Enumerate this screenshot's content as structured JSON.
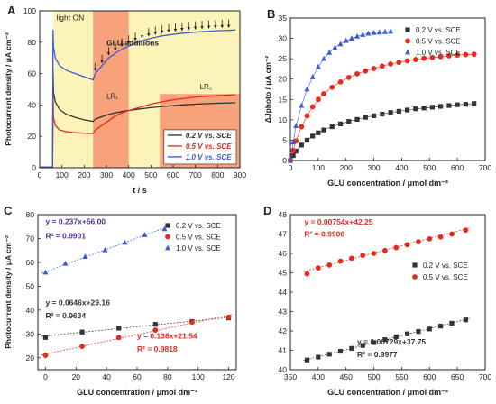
{
  "colors": {
    "black": "#333333",
    "red": "#e8291c",
    "blue": "#3c5bd6",
    "yellow": "#fbf3b8",
    "orange": "#f7a27a",
    "grey_gridline": "#999999",
    "purple": "#5a2ea0"
  },
  "chart_data": [
    {
      "panel": "A",
      "type": "line",
      "xlabel": "t / s",
      "ylabel": "Photocurrent density / μA cm⁻²",
      "xlim": [
        0,
        900
      ],
      "ylim": [
        0,
        100
      ],
      "xticks": [
        "0",
        "100",
        "200",
        "300",
        "400",
        "500",
        "600",
        "700",
        "800",
        "900"
      ],
      "yticks": [
        "0",
        "20",
        "40",
        "60",
        "80",
        "100"
      ],
      "annotations": {
        "light_on": "light ON",
        "glu": "GLU additions",
        "lr1": "LR₁",
        "lr2": "LR₂"
      },
      "shaded_regions": [
        {
          "label": "light ON",
          "x": [
            60,
            900
          ],
          "y": [
            0,
            100
          ],
          "color": "yellow"
        },
        {
          "label": "LR₁",
          "x": [
            240,
            400
          ],
          "y": [
            0,
            100
          ],
          "color": "orange"
        },
        {
          "label": "LR₂",
          "x": [
            540,
            900
          ],
          "y": [
            0,
            47
          ],
          "color": "orange"
        }
      ],
      "arrow_times": [
        250,
        280,
        310,
        340,
        370,
        400,
        430,
        460,
        490,
        520,
        550,
        580,
        610,
        640,
        670,
        700,
        730,
        760,
        790,
        820,
        850
      ],
      "legend_position": "bottom-right",
      "series": [
        {
          "name": "0.2 V vs. SCE",
          "color": "black",
          "x": [
            0,
            58,
            60,
            62,
            70,
            90,
            120,
            160,
            200,
            240,
            250,
            280,
            310,
            340,
            370,
            400,
            450,
            500,
            550,
            600,
            650,
            700,
            750,
            800,
            850,
            880
          ],
          "y": [
            0.5,
            0.5,
            62,
            48,
            42,
            37,
            34,
            32,
            30.5,
            29.5,
            31,
            32.5,
            34,
            35,
            35.8,
            36.5,
            37.5,
            38.3,
            39,
            39.6,
            40.1,
            40.5,
            40.8,
            41.1,
            41.3,
            41.4
          ]
        },
        {
          "name": "0.5 V vs. SCE",
          "color": "red",
          "x": [
            0,
            58,
            60,
            62,
            70,
            90,
            120,
            160,
            200,
            240,
            250,
            280,
            310,
            340,
            370,
            400,
            450,
            500,
            550,
            600,
            650,
            700,
            750,
            800,
            850,
            880
          ],
          "y": [
            0.5,
            0.5,
            46,
            32,
            27,
            24,
            23,
            22.3,
            22,
            21.8,
            24,
            27,
            30,
            33,
            35,
            36.5,
            38.5,
            40.5,
            42,
            43.3,
            44.2,
            45,
            45.6,
            46,
            46.3,
            46.5
          ]
        },
        {
          "name": "1.0 V vs. SCE",
          "color": "blue",
          "x": [
            0,
            58,
            60,
            62,
            70,
            90,
            120,
            160,
            200,
            240,
            250,
            280,
            310,
            340,
            370,
            400,
            450,
            500,
            550,
            600,
            650,
            700,
            750,
            800,
            850,
            880
          ],
          "y": [
            0.5,
            0.5,
            88,
            77,
            70,
            65,
            62,
            60,
            58,
            56,
            60,
            65,
            70,
            73,
            75.5,
            77.5,
            80.5,
            82.5,
            84,
            85,
            85.8,
            86.4,
            86.9,
            87.3,
            87.6,
            87.8
          ]
        }
      ]
    },
    {
      "panel": "B",
      "type": "scatter",
      "xlabel": "GLU concentration / μmol dm⁻³",
      "ylabel": "ΔJphoto / μA cm⁻²",
      "xlim": [
        0,
        700
      ],
      "ylim": [
        0,
        35
      ],
      "xticks": [
        "0",
        "100",
        "200",
        "300",
        "400",
        "500",
        "600",
        "700"
      ],
      "yticks": [
        "0",
        "5",
        "10",
        "15",
        "20",
        "25",
        "30",
        "35"
      ],
      "legend_position": "top-right",
      "series": [
        {
          "name": "0.2 V vs. SCE",
          "color": "black",
          "marker": "square",
          "x": [
            0,
            10,
            20,
            40,
            60,
            80,
            100,
            120,
            150,
            180,
            210,
            240,
            270,
            300,
            330,
            360,
            390,
            420,
            450,
            480,
            510,
            540,
            570,
            600,
            630,
            660
          ],
          "y": [
            0,
            1.2,
            2.3,
            3.8,
            5,
            6,
            6.8,
            7.5,
            8.3,
            9,
            9.6,
            10.1,
            10.6,
            11,
            11.4,
            11.8,
            12.1,
            12.4,
            12.7,
            12.9,
            13.1,
            13.3,
            13.5,
            13.7,
            13.8,
            14
          ]
        },
        {
          "name": "0.5 V vs. SCE",
          "color": "red",
          "marker": "circle",
          "x": [
            0,
            10,
            20,
            40,
            60,
            80,
            100,
            120,
            150,
            180,
            210,
            240,
            270,
            300,
            330,
            360,
            390,
            420,
            450,
            480,
            510,
            540,
            570,
            600,
            630,
            660
          ],
          "y": [
            0,
            2.5,
            4.8,
            8.3,
            11,
            13.2,
            15,
            16.4,
            18,
            19.3,
            20.4,
            21.3,
            22,
            22.6,
            23.2,
            23.7,
            24.1,
            24.5,
            24.8,
            25.1,
            25.3,
            25.5,
            25.7,
            25.9,
            26,
            26.1
          ]
        },
        {
          "name": "1.0 V vs. SCE",
          "color": "blue",
          "marker": "triangle",
          "x": [
            0,
            10,
            20,
            40,
            60,
            80,
            100,
            120,
            140,
            160,
            180,
            200,
            220,
            240,
            260,
            280,
            300,
            320,
            340,
            360
          ],
          "y": [
            0,
            4.5,
            8.5,
            13.5,
            17.5,
            20.5,
            23,
            25,
            26.5,
            27.7,
            28.6,
            29.4,
            30,
            30.5,
            30.9,
            31.2,
            31.4,
            31.5,
            31.6,
            31.7
          ]
        }
      ]
    },
    {
      "panel": "C",
      "type": "scatter",
      "xlabel": "GLU concentration / μmol dm⁻³",
      "ylabel": "Photocurrent density / μA cm⁻²",
      "xlim": [
        -5,
        125
      ],
      "ylim": [
        15,
        80
      ],
      "xticks": [
        "0",
        "20",
        "40",
        "60",
        "80",
        "100",
        "120"
      ],
      "yticks": [
        "20",
        "30",
        "40",
        "50",
        "60",
        "70",
        "80"
      ],
      "legend_position": "top-right",
      "equations": [
        {
          "eq": "y = 0.237x+56.00",
          "r2": "R² = 0.9901",
          "color": "blue"
        },
        {
          "eq": "y = 0.0646x+29.16",
          "r2": "R² = 0.9634",
          "color": "black"
        },
        {
          "eq": "y = 0.136x+21.54",
          "r2": "R² = 0.9818",
          "color": "red"
        }
      ],
      "series": [
        {
          "name": "0.2 V vs. SCE",
          "color": "black",
          "marker": "square",
          "fit": [
            0.0646,
            29.16
          ],
          "x": [
            0,
            24,
            48,
            72,
            96,
            120
          ],
          "y": [
            28.5,
            30.8,
            32.4,
            34.0,
            35.2,
            36.7
          ]
        },
        {
          "name": "0.5 V vs. SCE",
          "color": "red",
          "marker": "circle",
          "fit": [
            0.136,
            21.54
          ],
          "x": [
            0,
            24,
            48,
            72,
            96,
            120
          ],
          "y": [
            21.0,
            24.8,
            28.5,
            31.6,
            34.9,
            37.0
          ]
        },
        {
          "name": "1.0 V vs. SCE",
          "color": "blue",
          "marker": "triangle",
          "fit": [
            0.237,
            56.0
          ],
          "x": [
            0,
            13,
            26,
            39,
            52,
            65,
            78
          ],
          "y": [
            55.8,
            59.5,
            62.4,
            65.2,
            68.3,
            71.5,
            74.0
          ]
        }
      ]
    },
    {
      "panel": "D",
      "type": "scatter",
      "xlabel": "GLU concentration / μmol dm⁻³",
      "ylabel": "",
      "xlim": [
        350,
        700
      ],
      "ylim": [
        40,
        48
      ],
      "xticks": [
        "350",
        "400",
        "450",
        "500",
        "550",
        "600",
        "650",
        "700"
      ],
      "yticks": [
        "40",
        "41",
        "42",
        "43",
        "44",
        "45",
        "46",
        "47",
        "48"
      ],
      "legend_position": "center-right",
      "equations": [
        {
          "eq": "y = 0.00754x+42.25",
          "r2": "R² = 0.9900",
          "color": "red"
        },
        {
          "eq": "y = 0.00729x+37.75",
          "r2": "R² = 0.9977",
          "color": "black"
        }
      ],
      "series": [
        {
          "name": "0.2 V vs. SCE",
          "color": "black",
          "marker": "square",
          "fit": [
            0.00729,
            37.75
          ],
          "x": [
            380,
            400,
            420,
            440,
            460,
            480,
            500,
            520,
            540,
            560,
            580,
            600,
            620,
            640,
            665
          ],
          "y": [
            40.5,
            40.65,
            40.8,
            40.95,
            41.1,
            41.25,
            41.4,
            41.55,
            41.7,
            41.85,
            41.97,
            42.1,
            42.25,
            42.4,
            42.57
          ]
        },
        {
          "name": "0.5 V vs. SCE",
          "color": "red",
          "marker": "circle",
          "fit": [
            0.00754,
            42.25
          ],
          "x": [
            380,
            400,
            420,
            440,
            460,
            480,
            500,
            520,
            540,
            560,
            580,
            600,
            620,
            640,
            665
          ],
          "y": [
            44.95,
            45.25,
            45.4,
            45.6,
            45.75,
            45.9,
            46.0,
            46.15,
            46.3,
            46.45,
            46.6,
            46.75,
            46.85,
            47.0,
            47.2
          ]
        }
      ]
    }
  ]
}
